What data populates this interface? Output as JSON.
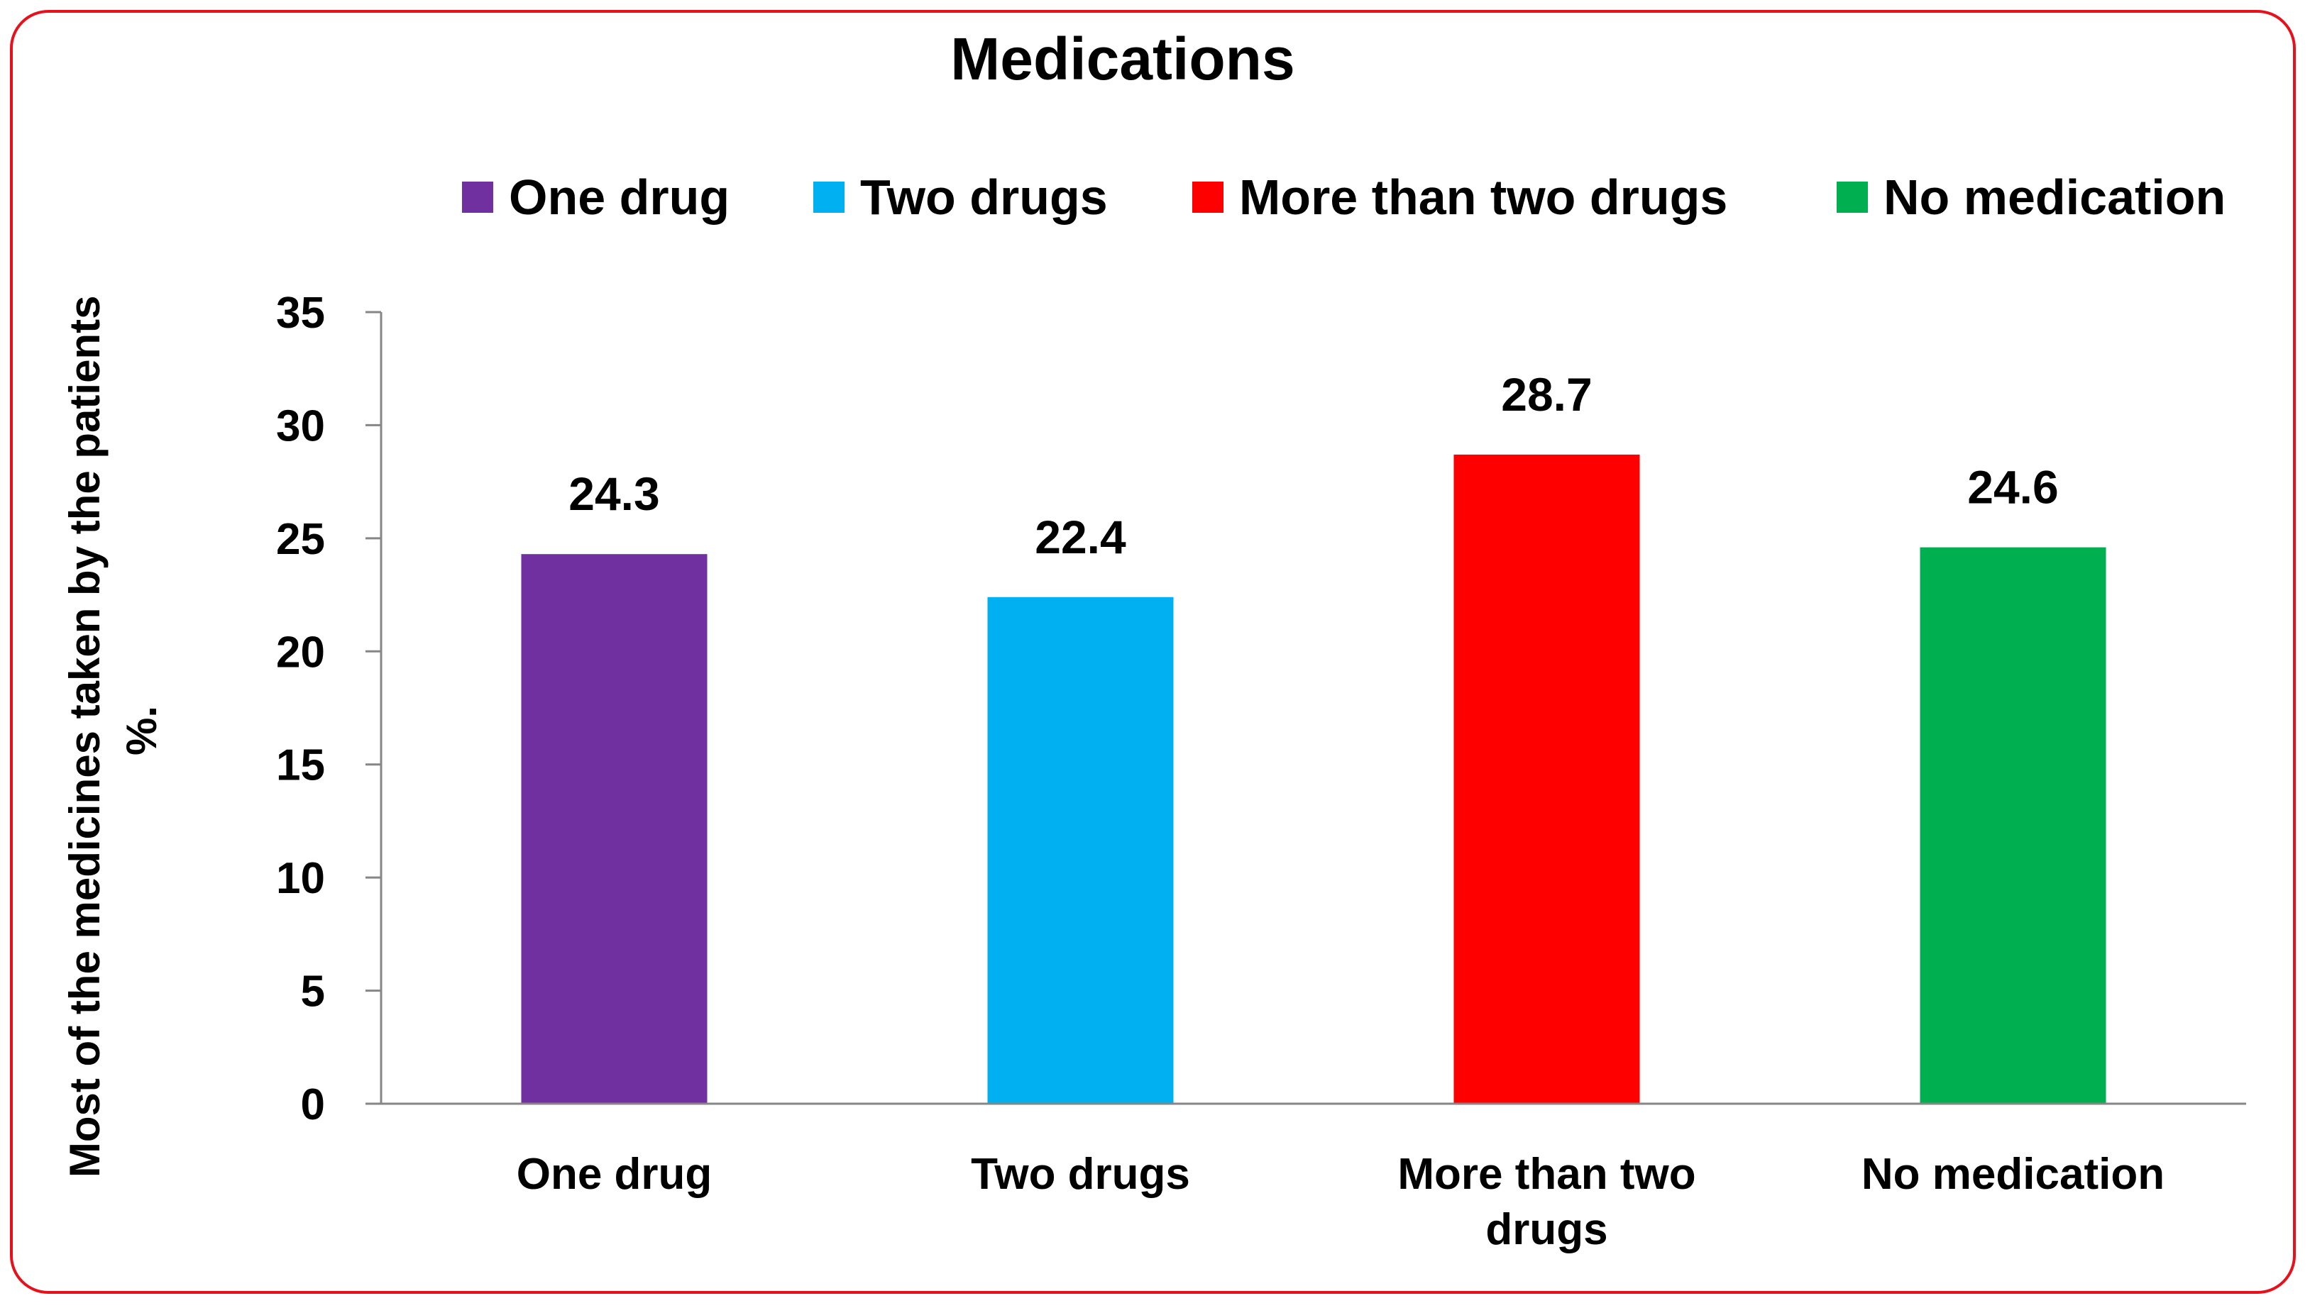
{
  "chart_data": {
    "type": "bar",
    "title": "Medications",
    "xlabel": "",
    "ylabel": "Most of the medicines taken by the patients %.",
    "ylabel_lines": [
      "Most of the medicines taken by the patients",
      "%."
    ],
    "categories": [
      "One drug",
      "Two drugs",
      "More than two drugs",
      "No medication"
    ],
    "category_label_lines": [
      [
        "One drug"
      ],
      [
        "Two drugs"
      ],
      [
        "More than two",
        "drugs"
      ],
      [
        "No medication"
      ]
    ],
    "values": [
      24.3,
      22.4,
      28.7,
      24.6
    ],
    "value_labels": [
      "24.3",
      "22.4",
      "28.7",
      "24.6"
    ],
    "colors": [
      "#7030a0",
      "#00b0f0",
      "#ff0000",
      "#00b050"
    ],
    "ylim": [
      0,
      35
    ],
    "yticks": [
      0,
      5,
      10,
      15,
      20,
      25,
      30,
      35
    ],
    "grid": false,
    "legend": {
      "position": "top",
      "entries": [
        "One drug",
        "Two drugs",
        "More than two drugs",
        "No medication"
      ]
    },
    "frame_color": "#e8101a"
  }
}
